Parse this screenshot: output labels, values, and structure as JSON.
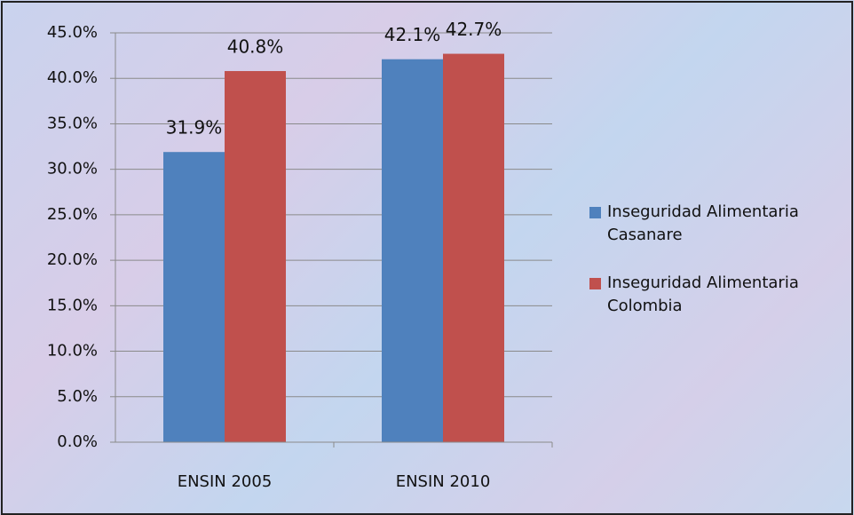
{
  "chart_data": {
    "type": "bar",
    "categories": [
      "ENSIN 2005",
      "ENSIN 2010"
    ],
    "series": [
      {
        "name": "Inseguridad Alimentaria Casanare",
        "color": "#4f81bd",
        "values": [
          31.9,
          42.1
        ],
        "value_labels": [
          "31.9%",
          "42.1%"
        ]
      },
      {
        "name": "Inseguridad Alimentaria Colombia",
        "color": "#c0504d",
        "values": [
          40.8,
          42.7
        ],
        "value_labels": [
          "40.8%",
          "42.7%"
        ]
      }
    ],
    "ylim": [
      0,
      45
    ],
    "yticks": [
      {
        "value": 0,
        "label": "0.0%"
      },
      {
        "value": 5,
        "label": "5.0%"
      },
      {
        "value": 10,
        "label": "10.0%"
      },
      {
        "value": 15,
        "label": "15.0%"
      },
      {
        "value": 20,
        "label": "20.0%"
      },
      {
        "value": 25,
        "label": "25.0%"
      },
      {
        "value": 30,
        "label": "30.0%"
      },
      {
        "value": 35,
        "label": "35.0%"
      },
      {
        "value": 40,
        "label": "40.0%"
      },
      {
        "value": 45,
        "label": "45.0%"
      }
    ],
    "grid": true,
    "legend": "right"
  }
}
